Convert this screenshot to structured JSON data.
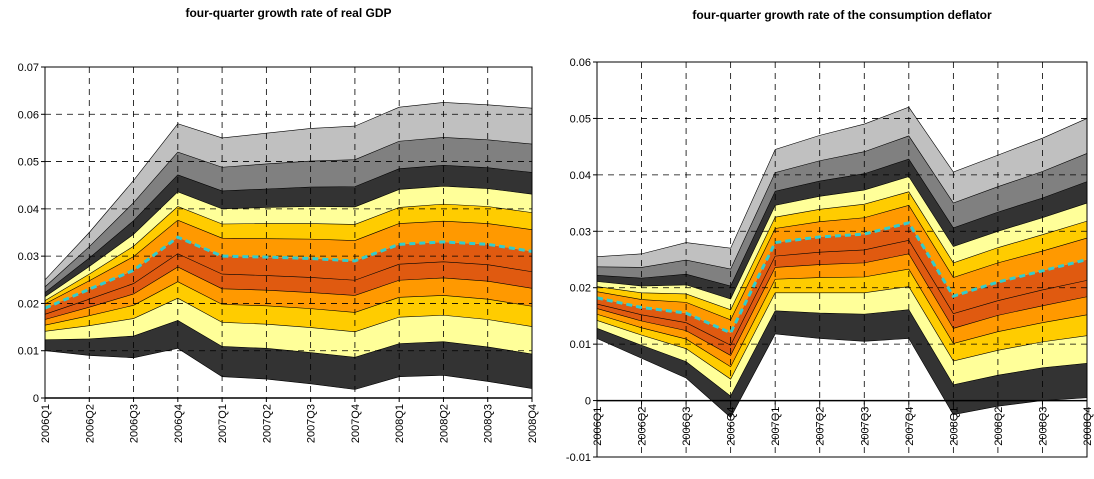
{
  "chart_data": [
    {
      "type": "fan",
      "title": "four-quarter growth rate of real GDP",
      "categories": [
        "2006Q1",
        "2006Q2",
        "2006Q3",
        "2006Q4",
        "2007Q1",
        "2007Q2",
        "2007Q3",
        "2007Q4",
        "2008Q1",
        "2008Q2",
        "2008Q3",
        "2008Q4"
      ],
      "ylim": [
        0,
        0.07
      ],
      "yticks": [
        0,
        0.01,
        0.02,
        0.03,
        0.04,
        0.05,
        0.06,
        0.07
      ],
      "grid": true,
      "upper": [
        [
          0.025,
          0.035,
          0.046,
          0.058,
          0.055,
          0.056,
          0.057,
          0.0575,
          0.0615,
          0.0625,
          0.062,
          0.0613
        ],
        [
          0.0235,
          0.032,
          0.0413,
          0.052,
          0.0488,
          0.0495,
          0.0501,
          0.0504,
          0.0543,
          0.0551,
          0.0546,
          0.0537
        ],
        [
          0.0223,
          0.0296,
          0.0375,
          0.0472,
          0.0438,
          0.0442,
          0.0446,
          0.0447,
          0.0485,
          0.0492,
          0.0487,
          0.0477
        ],
        [
          0.0214,
          0.0278,
          0.0346,
          0.0436,
          0.04,
          0.0403,
          0.0405,
          0.0404,
          0.0441,
          0.0448,
          0.0443,
          0.0431
        ],
        [
          0.0206,
          0.0262,
          0.0321,
          0.0405,
          0.0368,
          0.0369,
          0.0369,
          0.0367,
          0.0403,
          0.041,
          0.0405,
          0.0392
        ],
        [
          0.0199,
          0.0248,
          0.0299,
          0.0376,
          0.0338,
          0.0337,
          0.0336,
          0.0333,
          0.0369,
          0.0374,
          0.0369,
          0.0356
        ]
      ],
      "median": {
        "color": "#33cccc",
        "values": [
          0.019,
          0.023,
          0.027,
          0.034,
          0.03,
          0.0298,
          0.0295,
          0.029,
          0.0325,
          0.033,
          0.0325,
          0.031
        ]
      },
      "lower": [
        [
          0.0177,
          0.0209,
          0.0242,
          0.0305,
          0.0262,
          0.0259,
          0.0255,
          0.0249,
          0.0283,
          0.0288,
          0.0282,
          0.0267
        ],
        [
          0.0166,
          0.0192,
          0.022,
          0.0277,
          0.0231,
          0.0228,
          0.0223,
          0.0217,
          0.0249,
          0.0254,
          0.0247,
          0.0232
        ],
        [
          0.0154,
          0.0174,
          0.0196,
          0.0246,
          0.0198,
          0.0195,
          0.0189,
          0.0181,
          0.0213,
          0.0217,
          0.0209,
          0.0194
        ],
        [
          0.0141,
          0.0153,
          0.0168,
          0.0211,
          0.016,
          0.0156,
          0.0149,
          0.014,
          0.0171,
          0.0175,
          0.0166,
          0.0151
        ],
        [
          0.0123,
          0.0125,
          0.0131,
          0.0164,
          0.0109,
          0.0105,
          0.0096,
          0.0086,
          0.0115,
          0.0119,
          0.0108,
          0.0093
        ],
        [
          0.01,
          0.009,
          0.0085,
          0.0105,
          0.0045,
          0.004,
          0.003,
          0.0018,
          0.0045,
          0.0048,
          0.0035,
          0.002
        ]
      ],
      "band_colors": [
        "#c0c0c0",
        "#808080",
        "#333333",
        "#ffff99",
        "#ffcc00",
        "#ff9900",
        "#e05a10",
        "#e05a10",
        "#ff9900",
        "#ffcc00",
        "#ffff99",
        "#333333",
        "#808080",
        "#c0c0c0"
      ]
    },
    {
      "type": "fan",
      "title": "four-quarter growth rate of the consumption deflator",
      "categories": [
        "2006Q1",
        "2006Q2",
        "2006Q3",
        "2006Q4",
        "2007Q1",
        "2007Q2",
        "2007Q3",
        "2007Q4",
        "2008Q1",
        "2008Q2",
        "2008Q3",
        "2008Q4"
      ],
      "ylim": [
        -0.01,
        0.06
      ],
      "yticks": [
        -0.01,
        0,
        0.01,
        0.02,
        0.03,
        0.04,
        0.05,
        0.06
      ],
      "grid": true,
      "upper": [
        [
          0.0255,
          0.026,
          0.028,
          0.027,
          0.0445,
          0.047,
          0.049,
          0.052,
          0.0405,
          0.0435,
          0.0465,
          0.05
        ],
        [
          0.0237,
          0.0236,
          0.0249,
          0.0233,
          0.0404,
          0.0425,
          0.0441,
          0.0469,
          0.035,
          0.0379,
          0.0406,
          0.0438
        ],
        [
          0.0222,
          0.0217,
          0.0224,
          0.0203,
          0.0371,
          0.0389,
          0.0402,
          0.0428,
          0.0306,
          0.0334,
          0.0359,
          0.0388
        ],
        [
          0.0211,
          0.0203,
          0.0205,
          0.018,
          0.0346,
          0.0362,
          0.0373,
          0.0397,
          0.0273,
          0.03,
          0.0324,
          0.035
        ],
        [
          0.0202,
          0.0191,
          0.0189,
          0.0161,
          0.0325,
          0.0339,
          0.0348,
          0.037,
          0.0244,
          0.0271,
          0.0294,
          0.0318
        ],
        [
          0.0193,
          0.0179,
          0.0174,
          0.0143,
          0.0305,
          0.0317,
          0.0324,
          0.0346,
          0.0218,
          0.0244,
          0.0265,
          0.0288
        ]
      ],
      "median": {
        "color": "#33cccc",
        "values": [
          0.0182,
          0.0165,
          0.0155,
          0.012,
          0.028,
          0.029,
          0.0295,
          0.0315,
          0.0185,
          0.021,
          0.023,
          0.025
        ]
      },
      "lower": [
        [
          0.0171,
          0.0152,
          0.0138,
          0.0098,
          0.0256,
          0.0263,
          0.0267,
          0.0284,
          0.0154,
          0.0177,
          0.0196,
          0.0213
        ],
        [
          0.0163,
          0.0141,
          0.0124,
          0.008,
          0.0236,
          0.0241,
          0.0244,
          0.026,
          0.0128,
          0.0151,
          0.0168,
          0.0184
        ],
        [
          0.0153,
          0.0129,
          0.0109,
          0.006,
          0.0215,
          0.0218,
          0.0219,
          0.0233,
          0.0101,
          0.0122,
          0.0138,
          0.0152
        ],
        [
          0.0142,
          0.0116,
          0.0092,
          0.0038,
          0.0191,
          0.0191,
          0.0191,
          0.0202,
          0.007,
          0.0089,
          0.0104,
          0.0115
        ],
        [
          0.0128,
          0.0098,
          0.0069,
          0.0008,
          0.0159,
          0.0155,
          0.0153,
          0.0161,
          0.0028,
          0.0045,
          0.0058,
          0.0066
        ],
        [
          0.011,
          0.0075,
          0.004,
          -0.003,
          0.0118,
          0.011,
          0.0105,
          0.011,
          -0.0025,
          -0.001,
          0,
          0.0005
        ]
      ],
      "band_colors": [
        "#c0c0c0",
        "#808080",
        "#333333",
        "#ffff99",
        "#ffcc00",
        "#ff9900",
        "#e05a10",
        "#e05a10",
        "#ff9900",
        "#ffcc00",
        "#ffff99",
        "#333333",
        "#808080",
        "#c0c0c0"
      ]
    }
  ]
}
